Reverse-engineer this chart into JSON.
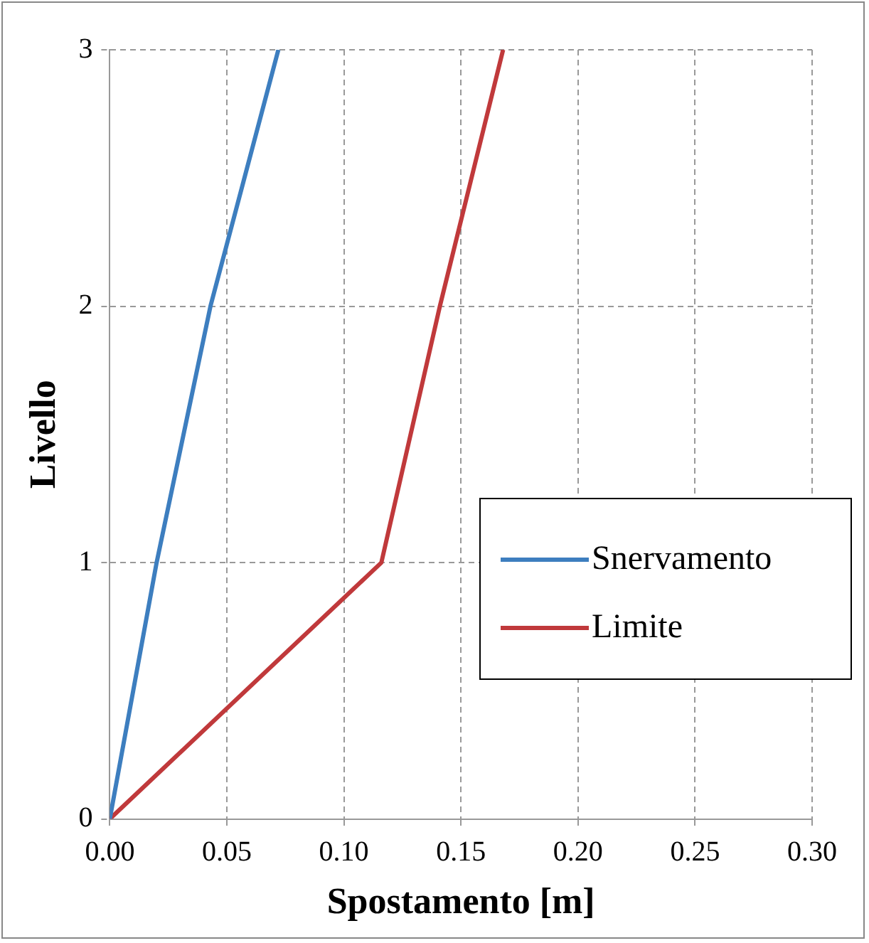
{
  "chart_data": {
    "type": "line",
    "xlabel": "Spostamento [m]",
    "ylabel": "Livello",
    "series": [
      {
        "name": "Snervamento",
        "color": "#3d7ebf",
        "x": [
          0,
          0.02,
          0.043,
          0.072
        ],
        "values": [
          0,
          1,
          2,
          3
        ]
      },
      {
        "name": "Limite",
        "color": "#c0393b",
        "x": [
          0,
          0.116,
          0.141,
          0.168
        ],
        "values": [
          0,
          1,
          2,
          3
        ]
      }
    ],
    "xlim": [
      0,
      0.3
    ],
    "xticks": [
      {
        "value": 0,
        "label": "0.00"
      },
      {
        "value": 0.05,
        "label": "0.05"
      },
      {
        "value": 0.1,
        "label": "0.10"
      },
      {
        "value": 0.15,
        "label": "0.15"
      },
      {
        "value": 0.2,
        "label": "0.20"
      },
      {
        "value": 0.25,
        "label": "0.25"
      },
      {
        "value": 0.3,
        "label": "0.30"
      }
    ],
    "ylim": [
      0,
      3
    ],
    "yticks": [
      0,
      1,
      2,
      3
    ],
    "grid": true,
    "legend": "right",
    "marker": "none",
    "line_style": "solid"
  }
}
